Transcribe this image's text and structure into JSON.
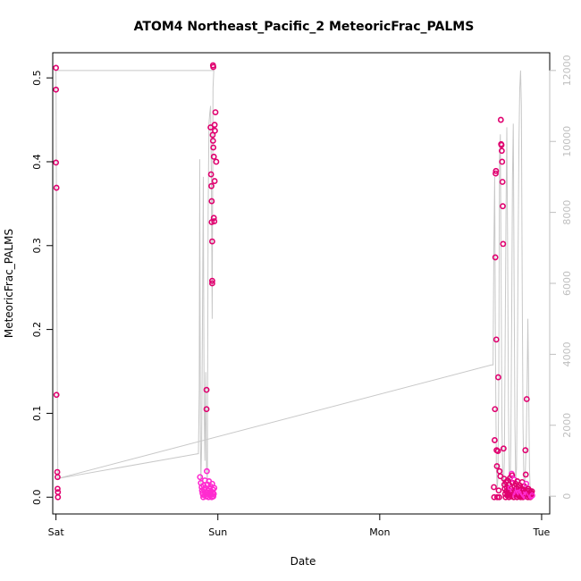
{
  "chart_data": {
    "type": "scatter",
    "title": "ATOM4 Northeast_Pacific_2 MeteoricFrac_PALMS",
    "xlabel": "Date",
    "ylabel": "MeteoricFrac_PALMS",
    "x_ticks": [
      {
        "label": "Sat",
        "day": 0
      },
      {
        "label": "Sun",
        "day": 1
      },
      {
        "label": "Mon",
        "day": 2
      },
      {
        "label": "Tue",
        "day": 3
      }
    ],
    "xlim": [
      -0.02,
      3.05
    ],
    "ylim": [
      -0.02,
      0.53
    ],
    "y_ticks": [
      0.0,
      0.1,
      0.2,
      0.3,
      0.4,
      0.5
    ],
    "y2lim": [
      -500,
      12500
    ],
    "y2_ticks": [
      0,
      2000,
      4000,
      6000,
      8000,
      10000,
      12000
    ],
    "colors": {
      "points_dark": "#e0006f",
      "points_light": "#ff2bd0",
      "line": "#c8c8c8",
      "axis": "#000000",
      "right_axis": "#bfbfbf"
    },
    "series": [
      {
        "type": "scatter",
        "points": [
          [
            0.0,
            0.512
          ],
          [
            0.0,
            0.486
          ],
          [
            0.0,
            0.399
          ],
          [
            0.003,
            0.369
          ],
          [
            0.003,
            0.122
          ],
          [
            0.008,
            0.03
          ],
          [
            0.01,
            0.024
          ],
          [
            0.01,
            0.01
          ],
          [
            0.012,
            0.006
          ],
          [
            0.012,
            0.0
          ],
          [
            0.89,
            0.024
          ],
          [
            0.895,
            0.017
          ],
          [
            0.9,
            0.012
          ],
          [
            0.902,
            0.008
          ],
          [
            0.905,
            0.005
          ],
          [
            0.908,
            0.003
          ],
          [
            0.91,
            0.0
          ],
          [
            0.912,
            0.014
          ],
          [
            0.915,
            0.009
          ],
          [
            0.918,
            0.002
          ],
          [
            0.92,
            0.02
          ],
          [
            0.922,
            0.011
          ],
          [
            0.925,
            0.006
          ],
          [
            0.928,
            0.001
          ],
          [
            0.93,
            0.128
          ],
          [
            0.93,
            0.105
          ],
          [
            0.932,
            0.031
          ],
          [
            0.935,
            0.015
          ],
          [
            0.938,
            0.008
          ],
          [
            0.94,
            0.004
          ],
          [
            0.942,
            0.0
          ],
          [
            0.945,
            0.019
          ],
          [
            0.948,
            0.01
          ],
          [
            0.95,
            0.006
          ],
          [
            0.952,
            0.002
          ],
          [
            0.955,
            0.013
          ],
          [
            0.958,
            0.007
          ],
          [
            0.96,
            0.003
          ],
          [
            0.962,
            0.0
          ],
          [
            0.965,
            0.016
          ],
          [
            0.968,
            0.005
          ],
          [
            0.97,
            0.009
          ],
          [
            0.972,
            0.001
          ],
          [
            0.975,
            0.004
          ],
          [
            0.978,
            0.011
          ],
          [
            0.955,
            0.441
          ],
          [
            0.958,
            0.385
          ],
          [
            0.96,
            0.371
          ],
          [
            0.962,
            0.353
          ],
          [
            0.962,
            0.328
          ],
          [
            0.965,
            0.305
          ],
          [
            0.965,
            0.258
          ],
          [
            0.965,
            0.255
          ],
          [
            0.968,
            0.432
          ],
          [
            0.97,
            0.425
          ],
          [
            0.972,
            0.417
          ],
          [
            0.975,
            0.406
          ],
          [
            0.975,
            0.333
          ],
          [
            0.978,
            0.329
          ],
          [
            0.98,
            0.377
          ],
          [
            0.98,
            0.444
          ],
          [
            0.982,
            0.437
          ],
          [
            0.985,
            0.459
          ],
          [
            0.99,
            0.4
          ],
          [
            0.97,
            0.515
          ],
          [
            0.972,
            0.513
          ],
          [
            2.705,
            0.012
          ],
          [
            2.707,
            0.0
          ],
          [
            2.71,
            0.068
          ],
          [
            2.712,
            0.105
          ],
          [
            2.714,
            0.286
          ],
          [
            2.716,
            0.386
          ],
          [
            2.718,
            0.389
          ],
          [
            2.72,
            0.188
          ],
          [
            2.722,
            0.056
          ],
          [
            2.724,
            0.037
          ],
          [
            2.726,
            0.0
          ],
          [
            2.73,
            0.055
          ],
          [
            2.732,
            0.143
          ],
          [
            2.735,
            0.008
          ],
          [
            2.738,
            0.0
          ],
          [
            2.74,
            0.031
          ],
          [
            2.745,
            0.025
          ],
          [
            2.748,
            0.45
          ],
          [
            2.75,
            0.421
          ],
          [
            2.752,
            0.42
          ],
          [
            2.754,
            0.413
          ],
          [
            2.756,
            0.4
          ],
          [
            2.758,
            0.376
          ],
          [
            2.76,
            0.347
          ],
          [
            2.762,
            0.302
          ],
          [
            2.765,
            0.058
          ],
          [
            2.768,
            0.022
          ],
          [
            2.77,
            0.015
          ],
          [
            2.772,
            0.01
          ],
          [
            2.775,
            0.004
          ],
          [
            2.778,
            0.0
          ],
          [
            2.78,
            0.018
          ],
          [
            2.782,
            0.007
          ],
          [
            2.785,
            0.012
          ],
          [
            2.788,
            0.002
          ],
          [
            2.79,
            0.02
          ],
          [
            2.792,
            0.005
          ],
          [
            2.795,
            0.009
          ],
          [
            2.798,
            0.0
          ],
          [
            2.8,
            0.015
          ],
          [
            2.803,
            0.003
          ],
          [
            2.805,
            0.023
          ],
          [
            2.808,
            0.011
          ],
          [
            2.81,
            0.006
          ],
          [
            2.812,
            0.001
          ],
          [
            2.815,
            0.028
          ],
          [
            2.818,
            0.026
          ],
          [
            2.82,
            0.017
          ],
          [
            2.822,
            0.008
          ],
          [
            2.825,
            0.004
          ],
          [
            2.828,
            0.0
          ],
          [
            2.83,
            0.021
          ],
          [
            2.832,
            0.013
          ],
          [
            2.835,
            0.007
          ],
          [
            2.838,
            0.002
          ],
          [
            2.84,
            0.016
          ],
          [
            2.842,
            0.01
          ],
          [
            2.845,
            0.005
          ],
          [
            2.848,
            0.0
          ],
          [
            2.85,
            0.019
          ],
          [
            2.852,
            0.009
          ],
          [
            2.855,
            0.003
          ],
          [
            2.858,
            0.012
          ],
          [
            2.86,
            0.006
          ],
          [
            2.862,
            0.001
          ],
          [
            2.865,
            0.014
          ],
          [
            2.868,
            0.004
          ],
          [
            2.87,
            0.0
          ],
          [
            2.872,
            0.011
          ],
          [
            2.875,
            0.007
          ],
          [
            2.878,
            0.002
          ],
          [
            2.88,
            0.018
          ],
          [
            2.882,
            0.005
          ],
          [
            2.885,
            0.0
          ],
          [
            2.888,
            0.009
          ],
          [
            2.89,
            0.003
          ],
          [
            2.892,
            0.013
          ],
          [
            2.895,
            0.006
          ],
          [
            2.898,
            0.001
          ],
          [
            2.9,
            0.056
          ],
          [
            2.902,
            0.027
          ],
          [
            2.905,
            0.016
          ],
          [
            2.908,
            0.117
          ],
          [
            2.91,
            0.008
          ],
          [
            2.912,
            0.004
          ],
          [
            2.915,
            0.0
          ],
          [
            2.918,
            0.01
          ],
          [
            2.92,
            0.005
          ],
          [
            2.922,
            0.002
          ],
          [
            2.925,
            0.008
          ],
          [
            2.928,
            0.003
          ],
          [
            2.93,
            0.0
          ],
          [
            2.932,
            0.006
          ],
          [
            2.935,
            0.001
          ],
          [
            2.938,
            0.004
          ],
          [
            2.94,
            0.007
          ],
          [
            2.942,
            0.002
          ]
        ]
      },
      {
        "type": "line",
        "axis": "right",
        "points": [
          [
            0.0,
            12000
          ],
          [
            0.005,
            6000
          ],
          [
            0.01,
            1500
          ],
          [
            0.012,
            500
          ],
          [
            0.88,
            1200
          ],
          [
            0.885,
            3000
          ],
          [
            0.888,
            9500
          ],
          [
            0.892,
            2000
          ],
          [
            0.895,
            300
          ],
          [
            0.9,
            1500
          ],
          [
            0.905,
            5000
          ],
          [
            0.91,
            9000
          ],
          [
            0.915,
            2500
          ],
          [
            0.92,
            1000
          ],
          [
            0.925,
            3500
          ],
          [
            0.93,
            800
          ],
          [
            0.935,
            400
          ],
          [
            0.94,
            8000
          ],
          [
            0.945,
            10500
          ],
          [
            0.95,
            10800
          ],
          [
            0.955,
            11000
          ],
          [
            0.96,
            9000
          ],
          [
            0.965,
            5000
          ],
          [
            0.97,
            11500
          ],
          [
            0.975,
            12000
          ],
          [
            0.975,
            12000
          ],
          [
            0.0,
            12000
          ]
        ]
      },
      {
        "type": "line",
        "axis": "right",
        "points": [
          [
            0.012,
            500
          ],
          [
            2.69,
            3700
          ],
          [
            2.7,
            3700
          ],
          [
            2.705,
            7000
          ],
          [
            2.71,
            9000
          ],
          [
            2.715,
            4000
          ],
          [
            2.72,
            1000
          ],
          [
            2.725,
            200
          ],
          [
            2.73,
            500
          ],
          [
            2.735,
            3000
          ],
          [
            2.74,
            9500
          ],
          [
            2.745,
            10200
          ],
          [
            2.75,
            6000
          ],
          [
            2.755,
            2000
          ],
          [
            2.76,
            500
          ],
          [
            2.765,
            300
          ],
          [
            2.77,
            1000
          ],
          [
            2.775,
            4500
          ],
          [
            2.78,
            8000
          ],
          [
            2.785,
            10400
          ],
          [
            2.79,
            7000
          ],
          [
            2.795,
            2500
          ],
          [
            2.8,
            600
          ],
          [
            2.805,
            200
          ],
          [
            2.81,
            1500
          ],
          [
            2.815,
            5000
          ],
          [
            2.82,
            9000
          ],
          [
            2.825,
            10500
          ],
          [
            2.83,
            6000
          ],
          [
            2.835,
            2000
          ],
          [
            2.84,
            400
          ],
          [
            2.845,
            800
          ],
          [
            2.85,
            3500
          ],
          [
            2.855,
            7000
          ],
          [
            2.86,
            10000
          ],
          [
            2.865,
            11500
          ],
          [
            2.87,
            12000
          ],
          [
            2.875,
            11000
          ],
          [
            2.88,
            6000
          ],
          [
            2.885,
            2000
          ],
          [
            2.89,
            500
          ],
          [
            2.895,
            200
          ],
          [
            2.9,
            800
          ],
          [
            2.905,
            1500
          ],
          [
            2.91,
            3000
          ],
          [
            2.915,
            5000
          ],
          [
            2.92,
            3000
          ],
          [
            2.925,
            800
          ],
          [
            2.93,
            100
          ]
        ]
      }
    ]
  }
}
